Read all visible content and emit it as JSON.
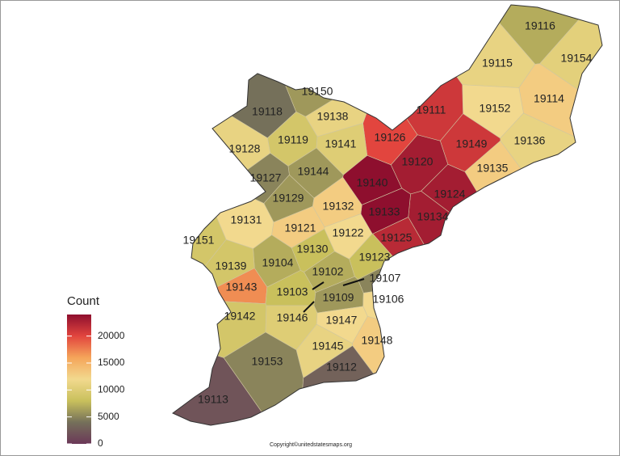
{
  "legend": {
    "title": "Count",
    "ylim": [
      0,
      24000
    ],
    "ticks": [
      0,
      5000,
      10000,
      15000,
      20000
    ],
    "colors": [
      "#6b3858",
      "#75705a",
      "#c9c05c",
      "#f2d98e",
      "#f5a55a",
      "#e2453e",
      "#8e0f2e"
    ]
  },
  "zips": [
    {
      "label": "19116",
      "count": 7000
    },
    {
      "label": "19154",
      "count": 10500
    },
    {
      "label": "19115",
      "count": 11000
    },
    {
      "label": "19114",
      "count": 13000
    },
    {
      "label": "19152",
      "count": 12000
    },
    {
      "label": "19136",
      "count": 11000
    },
    {
      "label": "19111",
      "count": 21000
    },
    {
      "label": "19149",
      "count": 21000
    },
    {
      "label": "19135",
      "count": 13000
    },
    {
      "label": "19120",
      "count": 23000
    },
    {
      "label": "19124",
      "count": 23000
    },
    {
      "label": "19134",
      "count": 23000
    },
    {
      "label": "19126",
      "count": 20000
    },
    {
      "label": "19140",
      "count": 24000
    },
    {
      "label": "19133",
      "count": 24000
    },
    {
      "label": "19125",
      "count": 22000
    },
    {
      "label": "19150",
      "count": 6000
    },
    {
      "label": "19118",
      "count": 4000
    },
    {
      "label": "19138",
      "count": 11000
    },
    {
      "label": "19119",
      "count": 9000
    },
    {
      "label": "19141",
      "count": 10000
    },
    {
      "label": "19128",
      "count": 11000
    },
    {
      "label": "19144",
      "count": 6000
    },
    {
      "label": "19127",
      "count": 5000
    },
    {
      "label": "19129",
      "count": 6000
    },
    {
      "label": "19132",
      "count": 13000
    },
    {
      "label": "19131",
      "count": 12000
    },
    {
      "label": "19121",
      "count": 13000
    },
    {
      "label": "19122",
      "count": 12000
    },
    {
      "label": "19151",
      "count": 9000
    },
    {
      "label": "19130",
      "count": 8000
    },
    {
      "label": "19123",
      "count": 8000
    },
    {
      "label": "19104",
      "count": 7000
    },
    {
      "label": "19139",
      "count": 9000
    },
    {
      "label": "19102",
      "count": 7000
    },
    {
      "label": "19107",
      "count": 5000
    },
    {
      "label": "19143",
      "count": 17000
    },
    {
      "label": "19103",
      "count": 8000
    },
    {
      "label": "19109",
      "count": 6000
    },
    {
      "label": "19106",
      "count": 12000
    },
    {
      "label": "19142",
      "count": 9000
    },
    {
      "label": "19146",
      "count": 10000
    },
    {
      "label": "19147",
      "count": 12000
    },
    {
      "label": "19148",
      "count": 13000
    },
    {
      "label": "19145",
      "count": 11000
    },
    {
      "label": "19153",
      "count": 5000
    },
    {
      "label": "19112",
      "count": 3000
    },
    {
      "label": "19113",
      "count": 2000
    }
  ],
  "copyright": "Copyright©unitedstatesmaps.org"
}
